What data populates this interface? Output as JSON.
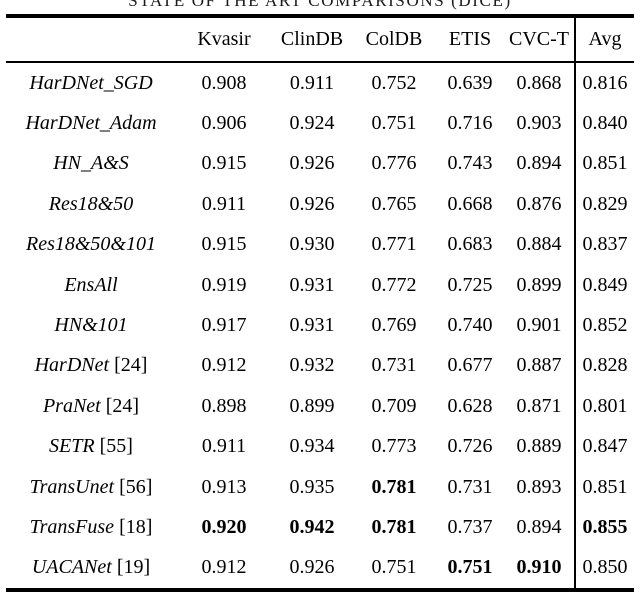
{
  "caption": "STATE OF THE ART COMPARISONS (DICE)",
  "colors": {
    "text": "#000000",
    "background": "#ffffff",
    "rule": "#000000"
  },
  "table": {
    "columns": [
      "Kvasir",
      "ClinDB",
      "ColDB",
      "ETIS",
      "CVC-T",
      "Avg"
    ],
    "rows": [
      {
        "model": "HarDNet_SGD",
        "cite": "",
        "values": [
          "0.908",
          "0.911",
          "0.752",
          "0.639",
          "0.868",
          "0.816"
        ],
        "bold": []
      },
      {
        "model": "HarDNet_Adam",
        "cite": "",
        "values": [
          "0.906",
          "0.924",
          "0.751",
          "0.716",
          "0.903",
          "0.840"
        ],
        "bold": []
      },
      {
        "model": "HN_A&S",
        "cite": "",
        "values": [
          "0.915",
          "0.926",
          "0.776",
          "0.743",
          "0.894",
          "0.851"
        ],
        "bold": []
      },
      {
        "model": "Res18&50",
        "cite": "",
        "values": [
          "0.911",
          "0.926",
          "0.765",
          "0.668",
          "0.876",
          "0.829"
        ],
        "bold": []
      },
      {
        "model": "Res18&50&101",
        "cite": "",
        "values": [
          "0.915",
          "0.930",
          "0.771",
          "0.683",
          "0.884",
          "0.837"
        ],
        "bold": []
      },
      {
        "model": "EnsAll",
        "cite": "",
        "values": [
          "0.919",
          "0.931",
          "0.772",
          "0.725",
          "0.899",
          "0.849"
        ],
        "bold": []
      },
      {
        "model": "HN&101",
        "cite": "",
        "values": [
          "0.917",
          "0.931",
          "0.769",
          "0.740",
          "0.901",
          "0.852"
        ],
        "bold": []
      },
      {
        "model": "HarDNet",
        "cite": "[24]",
        "values": [
          "0.912",
          "0.932",
          "0.731",
          "0.677",
          "0.887",
          "0.828"
        ],
        "bold": []
      },
      {
        "model": "PraNet",
        "cite": "[24]",
        "values": [
          "0.898",
          "0.899",
          "0.709",
          "0.628",
          "0.871",
          "0.801"
        ],
        "bold": []
      },
      {
        "model": "SETR",
        "cite": "[55]",
        "values": [
          "0.911",
          "0.934",
          "0.773",
          "0.726",
          "0.889",
          "0.847"
        ],
        "bold": []
      },
      {
        "model": "TransUnet",
        "cite": "[56]",
        "values": [
          "0.913",
          "0.935",
          "0.781",
          "0.731",
          "0.893",
          "0.851"
        ],
        "bold": [
          2
        ]
      },
      {
        "model": "TransFuse",
        "cite": "[18]",
        "values": [
          "0.920",
          "0.942",
          "0.781",
          "0.737",
          "0.894",
          "0.855"
        ],
        "bold": [
          0,
          1,
          2,
          5
        ]
      },
      {
        "model": "UACANet",
        "cite": "[19]",
        "values": [
          "0.912",
          "0.926",
          "0.751",
          "0.751",
          "0.910",
          "0.850"
        ],
        "bold": [
          3,
          4
        ]
      }
    ]
  }
}
